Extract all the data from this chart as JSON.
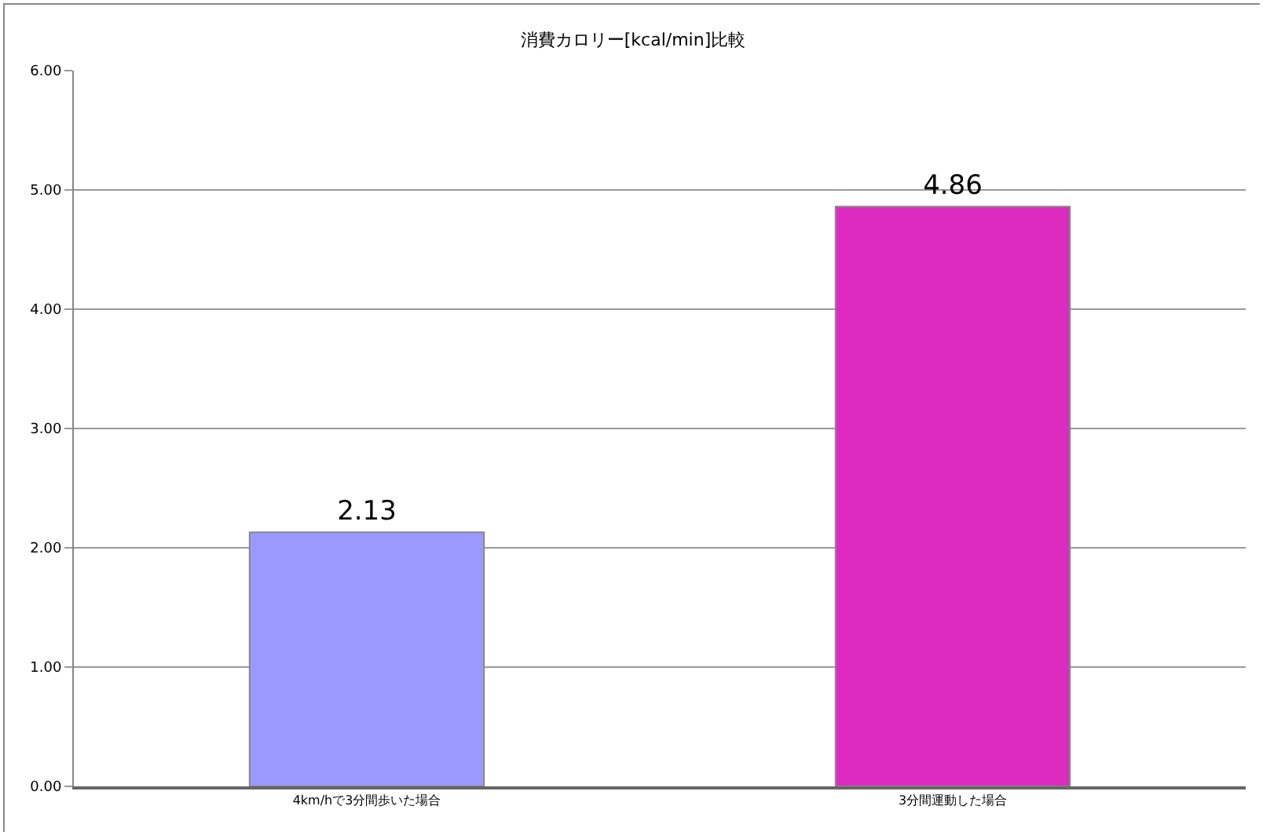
{
  "chart_data": {
    "type": "bar",
    "title": "消費カロリー[kcal/min]比較",
    "categories": [
      "4km/hで3分間歩いた場合",
      "3分間運動した場合"
    ],
    "values": [
      2.13,
      4.86
    ],
    "colors": [
      "#9999ff",
      "#dd2bc1"
    ],
    "ylim": [
      0,
      6
    ],
    "yticks": [
      {
        "value": 0,
        "label": "0.00"
      },
      {
        "value": 1,
        "label": "1.00"
      },
      {
        "value": 2,
        "label": "2.00"
      },
      {
        "value": 3,
        "label": "3.00"
      },
      {
        "value": 4,
        "label": "4.00"
      },
      {
        "value": 5,
        "label": "5.00"
      },
      {
        "value": 6,
        "label": "6.00"
      }
    ],
    "grid": "y",
    "data_labels": true
  }
}
